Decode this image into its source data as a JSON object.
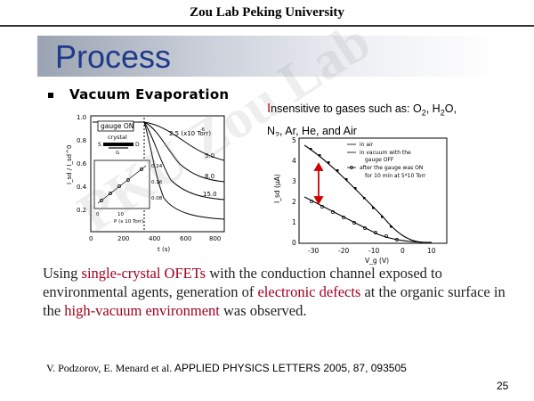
{
  "header": {
    "text": "Zou Lab Peking University"
  },
  "title": "Process",
  "bullet": "Vacuum Evaporation",
  "insensitive": {
    "line1_start": "I",
    "line1_rest": "nsensitive to gases such as: O",
    "o2_sub": "2",
    "h2o_pre": ", H",
    "h2o_sub": "2",
    "h2o_post": "O,",
    "n2_pre": "N",
    "n2_sub": "2",
    "line2_rest": ", Ar, He, and Air"
  },
  "watermark": "PKU Zou Lab",
  "body": {
    "p1": "Using ",
    "hl1": "single-crystal OFETs",
    "p2": " with the conduction channel exposed to environmental agents, generation of ",
    "hl2": "electronic defects",
    "p3": " at the organic surface in the ",
    "hl3": "high-vacuum environment",
    "p4": " was observed."
  },
  "citation": {
    "authors": "V. Podzorov, E. Menard et al.",
    "journal": " APPLIED PHYSICS LETTERS 2005, 87, 093505"
  },
  "page_number": "25",
  "figure_left": {
    "yaxis": "I_sd / I_sd^0",
    "xaxis": "t (s)",
    "yticks": [
      "1.0",
      "0.8",
      "0.6",
      "0.4",
      "0.2"
    ],
    "xticks": [
      "0",
      "200",
      "400",
      "600",
      "800"
    ],
    "gauge_label": "gauge ON",
    "crystal_label": "crystal",
    "s_label": "S",
    "d_label": "D",
    "g_label": "G",
    "pressure_labels": [
      "2.5 (x10  Torr)",
      "5.0",
      "8.0",
      "15.0"
    ],
    "exp_label": "-6",
    "inset_x": "P (x 10  Torr)",
    "inset_x_ticks": [
      "0",
      "10"
    ],
    "inset_y_ticks": [
      "0.24",
      "0.16",
      "0.08"
    ]
  },
  "figure_right": {
    "yaxis": "I_sd (µA)",
    "xaxis": "V_g (V)",
    "yticks": [
      "5",
      "4",
      "3",
      "2",
      "1",
      "0"
    ],
    "xticks": [
      "-30",
      "-20",
      "-10",
      "0",
      "10"
    ],
    "legend": [
      "in air",
      "in vacuum with the",
      "gauge OFF",
      "after the gauge was ON",
      "for 10 min at 5*10  Torr"
    ]
  }
}
